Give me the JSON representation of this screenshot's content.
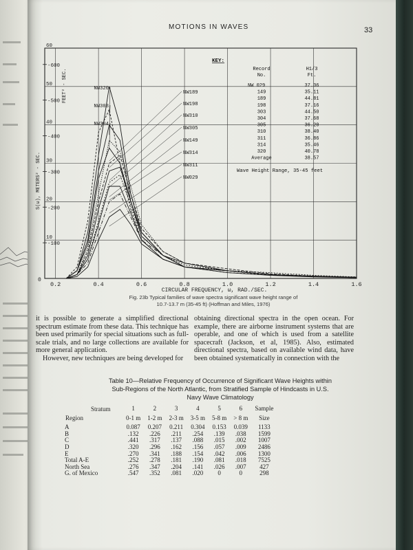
{
  "header": {
    "title": "MOTIONS IN WAVES",
    "page_number": "33"
  },
  "chart_data": {
    "type": "line",
    "title": "",
    "xlabel": "CIRCULAR FREQUENCY, ω, RAD./SEC.",
    "ylabel_left": "S(ω), METERS² - SEC.",
    "ylabel_right": "FEET² - SEC.",
    "x_ticks": [
      "0.2",
      "0.4",
      "0.6",
      "0.8",
      "1.0",
      "1.2",
      "1.4",
      "1.6"
    ],
    "xlim": [
      0.15,
      1.6
    ],
    "y_ticks_m": [
      "10",
      "20",
      "30",
      "40",
      "50",
      "60"
    ],
    "y_ticks_ft": [
      "-100",
      "-200",
      "-300",
      "-400",
      "-500",
      "-600"
    ],
    "ylim": [
      0,
      60
    ],
    "grid": true,
    "zero_label": "0",
    "series": [
      {
        "name": "NW320",
        "x": [
          0.25,
          0.3,
          0.35,
          0.4,
          0.45,
          0.5,
          0.55,
          0.6,
          0.7,
          0.8,
          1.0,
          1.2,
          1.4,
          1.6
        ],
        "y": [
          0,
          2,
          12,
          32,
          50,
          40,
          22,
          12,
          6,
          3,
          2,
          1,
          0.5,
          0.3
        ]
      },
      {
        "name": "NW303",
        "x": [
          0.25,
          0.3,
          0.35,
          0.4,
          0.45,
          0.5,
          0.55,
          0.6,
          0.7,
          0.8,
          1.0,
          1.2,
          1.4,
          1.6
        ],
        "y": [
          0,
          3,
          15,
          38,
          44,
          30,
          18,
          10,
          5,
          3,
          1.5,
          1,
          0.5,
          0.3
        ]
      },
      {
        "name": "NW304",
        "x": [
          0.25,
          0.3,
          0.35,
          0.4,
          0.45,
          0.5,
          0.55,
          0.6,
          0.7,
          0.8,
          1.0,
          1.2,
          1.4,
          1.6
        ],
        "y": [
          0,
          2,
          10,
          28,
          40,
          36,
          20,
          11,
          6,
          3,
          2,
          1,
          0.5,
          0.2
        ]
      },
      {
        "name": "NW189",
        "x": [
          0.25,
          0.3,
          0.35,
          0.4,
          0.45,
          0.5,
          0.55,
          0.6,
          0.7,
          0.8,
          1.0,
          1.2,
          1.4,
          1.6
        ],
        "y": [
          0,
          1,
          8,
          22,
          36,
          33,
          24,
          14,
          7,
          4,
          2,
          1,
          0.5,
          0.3
        ]
      },
      {
        "name": "NW198",
        "x": [
          0.25,
          0.3,
          0.35,
          0.4,
          0.45,
          0.5,
          0.55,
          0.6,
          0.7,
          0.8,
          1.0,
          1.2,
          1.4,
          1.6
        ],
        "y": [
          0,
          2,
          9,
          26,
          34,
          30,
          20,
          12,
          6,
          4,
          2,
          1,
          0.6,
          0.3
        ]
      },
      {
        "name": "NW310",
        "x": [
          0.25,
          0.3,
          0.35,
          0.4,
          0.45,
          0.5,
          0.55,
          0.6,
          0.7,
          0.8,
          1.0,
          1.2,
          1.4,
          1.6
        ],
        "y": [
          0,
          1,
          7,
          20,
          30,
          32,
          22,
          13,
          7,
          4,
          2.5,
          1.2,
          0.6,
          0.3
        ]
      },
      {
        "name": "NW305",
        "x": [
          0.25,
          0.3,
          0.35,
          0.4,
          0.45,
          0.5,
          0.55,
          0.6,
          0.7,
          0.8,
          1.0,
          1.2,
          1.4,
          1.6
        ],
        "y": [
          0,
          1,
          6,
          18,
          28,
          29,
          20,
          12,
          6,
          3,
          2,
          1,
          0.5,
          0.3
        ]
      },
      {
        "name": "NW149",
        "x": [
          0.25,
          0.3,
          0.35,
          0.4,
          0.45,
          0.5,
          0.55,
          0.6,
          0.7,
          0.8,
          1.0,
          1.2,
          1.4,
          1.6
        ],
        "y": [
          0,
          1,
          5,
          15,
          25,
          27,
          19,
          11,
          6,
          3.5,
          2,
          1.5,
          0.8,
          0.4
        ]
      },
      {
        "name": "NW314",
        "x": [
          0.25,
          0.3,
          0.35,
          0.4,
          0.45,
          0.5,
          0.55,
          0.6,
          0.7,
          0.8,
          1.0,
          1.2,
          1.4,
          1.6
        ],
        "y": [
          0,
          1,
          5,
          14,
          24,
          24,
          17,
          10,
          5,
          3,
          2,
          1,
          0.5,
          0.3
        ]
      },
      {
        "name": "NW311",
        "x": [
          0.25,
          0.3,
          0.35,
          0.4,
          0.45,
          0.5,
          0.55,
          0.6,
          0.7,
          0.8,
          1.0,
          1.2,
          1.4,
          1.6
        ],
        "y": [
          0,
          1,
          4,
          12,
          20,
          22,
          16,
          10,
          6,
          3,
          2,
          1,
          0.5,
          0.2
        ]
      },
      {
        "name": "NW029",
        "x": [
          0.25,
          0.3,
          0.35,
          0.4,
          0.45,
          0.5,
          0.55,
          0.6,
          0.7,
          0.8,
          1.0,
          1.2,
          1.4,
          1.6
        ],
        "y": [
          0,
          0.5,
          3,
          10,
          16,
          18,
          14,
          9,
          5,
          3,
          1.5,
          0.8,
          0.4,
          0.2
        ]
      }
    ],
    "key": {
      "heading": "KEY:",
      "col1_header": [
        "Record",
        "No."
      ],
      "col2_header": [
        "H1/3",
        "Ft."
      ],
      "rows": [
        [
          "NW 029",
          "37.36"
        ],
        [
          "149",
          "35.11"
        ],
        [
          "189",
          "44.81"
        ],
        [
          "198",
          "37.16"
        ],
        [
          "303",
          "44.50"
        ],
        [
          "304",
          "37.68"
        ],
        [
          "305",
          "36.20"
        ],
        [
          "310",
          "38.40"
        ],
        [
          "311",
          "36.86"
        ],
        [
          "314",
          "35.46"
        ],
        [
          "320",
          "40.78"
        ],
        [
          "Average",
          "38.57"
        ]
      ],
      "range_note": "Wave Height Range, 35-45 feet"
    }
  },
  "caption": {
    "line1": "Fig. 23b   Typical families of wave spectra significant wave height range of",
    "line2": "10.7-13.7 m (35-45 ft) (Hoffman and Miles, 1976)"
  },
  "body": {
    "left": "it is possible to generate a simplified directional spectrum estimate from these data. This technique has been used primarily for special situations such as full-scale trials, and no large collections are available for more general application.",
    "left2": "However, new techniques are being developed for",
    "right": "obtaining directional spectra in the open ocean. For example, there are airborne instrument systems that are operable, and one of which is used from a satellite spacecraft (Jackson, et al, 1985). Also, estimated directional spectra, based on available wind data, have been obtained systematically in connection with the"
  },
  "table": {
    "title_line1": "Table 10—Relative Frequency of Occurrence of Significant Wave Heights within",
    "title_line2": "Sub-Regions of the North Atlantic, from Stratified Sample of Hindcasts in U.S.",
    "title_line3": "Navy Wave Climatology",
    "stratum_label": "Stratum",
    "region_label": "Region",
    "stratum_nums": [
      "1",
      "2",
      "3",
      "4",
      "5",
      "6"
    ],
    "ranges": [
      "0-1 m",
      "1-2 m",
      "2-3 m",
      "3-5 m",
      "5-8 m",
      "> 8 m"
    ],
    "sample_header": [
      "Sample",
      "Size"
    ],
    "rows": [
      {
        "region": "A",
        "vals": [
          "0.087",
          "0.207",
          "0.211",
          "0.304",
          "0.153",
          "0.039"
        ],
        "size": "1133"
      },
      {
        "region": "B",
        "vals": [
          ".132",
          ".226",
          ".211",
          ".254",
          ".139",
          ".038"
        ],
        "size": "1599"
      },
      {
        "region": "C",
        "vals": [
          ".441",
          ".317",
          ".137",
          ".088",
          ".015",
          ".002"
        ],
        "size": "1007"
      },
      {
        "region": "D",
        "vals": [
          ".320",
          ".296",
          ".162",
          ".156",
          ".057",
          ".009"
        ],
        "size": "2486"
      },
      {
        "region": "E",
        "vals": [
          ".270",
          ".341",
          ".188",
          ".154",
          ".042",
          ".006"
        ],
        "size": "1300"
      },
      {
        "region": "Total A-E",
        "vals": [
          ".252",
          ".278",
          ".181",
          ".190",
          ".081",
          ".018"
        ],
        "size": "7525"
      },
      {
        "region": "North Sea",
        "vals": [
          ".276",
          ".347",
          ".204",
          ".141",
          ".026",
          ".007"
        ],
        "size": "427"
      },
      {
        "region": "G. of Mexico",
        "vals": [
          ".547",
          ".352",
          ".081",
          ".020",
          "0",
          "0"
        ],
        "size": "298"
      }
    ]
  }
}
